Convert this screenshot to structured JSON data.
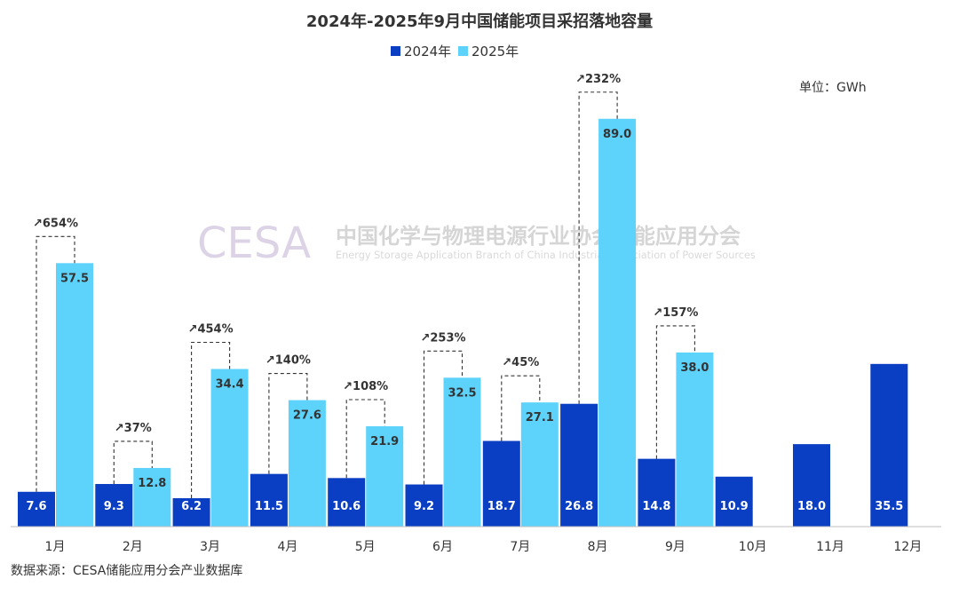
{
  "chart_data": {
    "type": "bar",
    "title": "2024年-2025年9月中国储能项目采招落地容量",
    "unit_label": "单位：GWh",
    "categories": [
      "1月",
      "2月",
      "3月",
      "4月",
      "5月",
      "6月",
      "7月",
      "8月",
      "9月",
      "10月",
      "11月",
      "12月"
    ],
    "series": [
      {
        "name": "2024年",
        "color": "#0a3fc4",
        "values": [
          7.6,
          9.3,
          6.2,
          11.5,
          10.6,
          9.2,
          18.7,
          26.8,
          14.8,
          10.9,
          18.0,
          35.5
        ]
      },
      {
        "name": "2025年",
        "color": "#5dd3fb",
        "values": [
          57.5,
          12.8,
          34.4,
          27.6,
          21.9,
          32.5,
          27.1,
          89.0,
          38.0,
          null,
          null,
          null
        ]
      }
    ],
    "growth_labels": [
      "↗654%",
      "↗37%",
      "↗454%",
      "↗140%",
      "↗108%",
      "↗253%",
      "↗45%",
      "↗232%",
      "↗157%",
      null,
      null,
      null
    ],
    "ylim": [
      0,
      100
    ],
    "grid": false,
    "legend_position": "top-center"
  },
  "watermark": {
    "logo_text": "CESA",
    "org_name_cn": "中国化学与物理电源行业协会储能应用分会",
    "org_name_en": "Energy Storage Application Branch of China Industrial Association of Power Sources"
  },
  "source_note": "数据来源：CESA储能应用分会产业数据库"
}
